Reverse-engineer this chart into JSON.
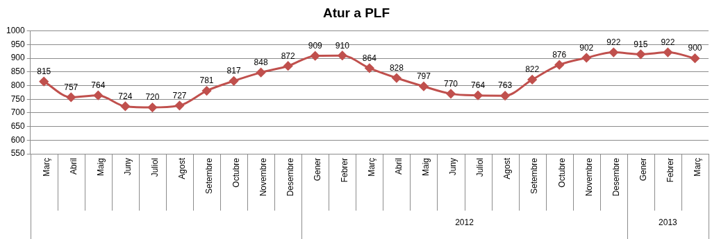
{
  "chart_data": {
    "type": "line",
    "title": "Atur a PLF",
    "categories": [
      "Març",
      "Abril",
      "Maig",
      "Juny",
      "Juliol",
      "Agost",
      "Setembre",
      "Octubre",
      "Novembre",
      "Desembre",
      "Gener",
      "Febrer",
      "Març",
      "Abril",
      "Maig",
      "Juny",
      "Juliol",
      "Agost",
      "Setembre",
      "Octubre",
      "Novembre",
      "Desembre",
      "Gener",
      "Febrer",
      "Març"
    ],
    "series": [
      {
        "color": "#c0504d",
        "values": [
          815,
          757,
          764,
          724,
          720,
          727,
          781,
          817,
          848,
          872,
          909,
          910,
          864,
          828,
          797,
          770,
          764,
          763,
          822,
          876,
          902,
          922,
          915,
          922,
          900
        ]
      }
    ],
    "ylim": [
      550,
      1000
    ],
    "yticks": [
      550,
      600,
      650,
      700,
      750,
      800,
      850,
      900,
      950,
      1000
    ],
    "grid": "y",
    "legend": false,
    "marker": "diamond",
    "line_style": "solid",
    "data_labels": true,
    "annotations": [
      "2012",
      "2013"
    ]
  }
}
